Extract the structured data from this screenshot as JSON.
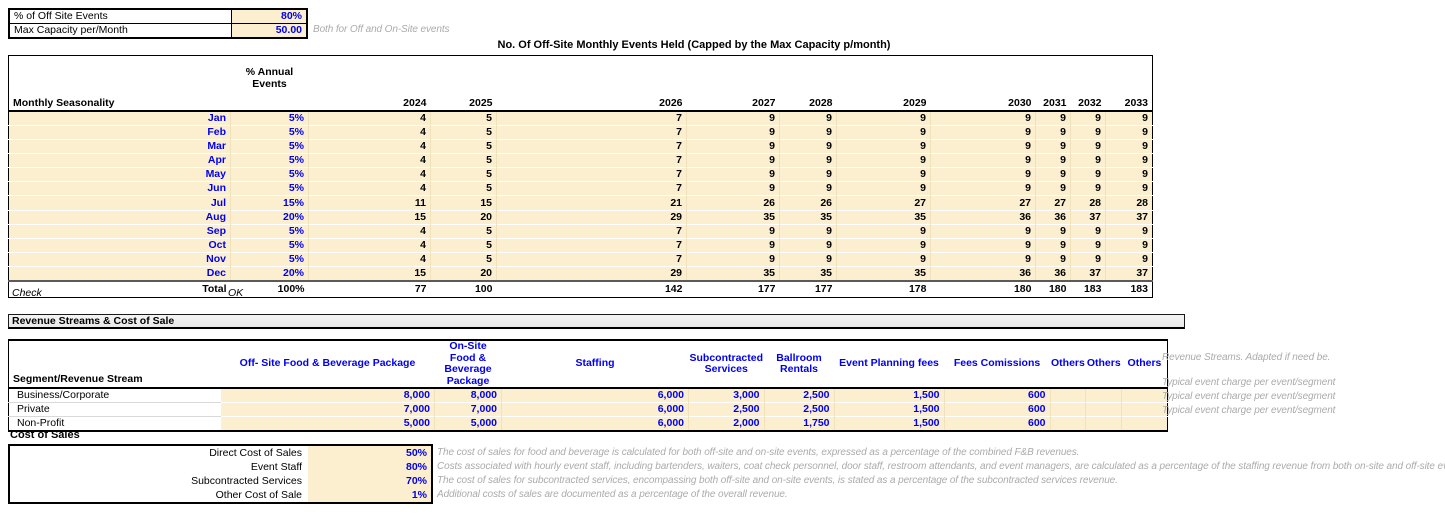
{
  "colors": {
    "accent_blue": "#0000EE",
    "input_fill": "#FBEFD0",
    "note_gray": "#ABABAB",
    "header_bar_fill": "#E9E9E9"
  },
  "params": {
    "off_site_events_label": "% of Off Site Events",
    "off_site_events_value": "80%",
    "max_capacity_label": "Max Capacity per/Month",
    "max_capacity_value": "50.00",
    "note": "Both for Off and On-Site events"
  },
  "seasonality": {
    "title": "No. Of Off-Site Monthly Events Held (Capped by the Max Capacity p/month)",
    "row_header": "Monthly Seasonality",
    "pct_header": "% Annual Events",
    "years": [
      "2024",
      "2025",
      "2026",
      "2027",
      "2028",
      "2029",
      "2030",
      "2031",
      "2032",
      "2033"
    ],
    "rows": [
      {
        "month": "Jan",
        "pct": "5%",
        "values": [
          "4",
          "5",
          "7",
          "9",
          "9",
          "9",
          "9",
          "9",
          "9",
          "9"
        ]
      },
      {
        "month": "Feb",
        "pct": "5%",
        "values": [
          "4",
          "5",
          "7",
          "9",
          "9",
          "9",
          "9",
          "9",
          "9",
          "9"
        ]
      },
      {
        "month": "Mar",
        "pct": "5%",
        "values": [
          "4",
          "5",
          "7",
          "9",
          "9",
          "9",
          "9",
          "9",
          "9",
          "9"
        ]
      },
      {
        "month": "Apr",
        "pct": "5%",
        "values": [
          "4",
          "5",
          "7",
          "9",
          "9",
          "9",
          "9",
          "9",
          "9",
          "9"
        ]
      },
      {
        "month": "May",
        "pct": "5%",
        "values": [
          "4",
          "5",
          "7",
          "9",
          "9",
          "9",
          "9",
          "9",
          "9",
          "9"
        ]
      },
      {
        "month": "Jun",
        "pct": "5%",
        "values": [
          "4",
          "5",
          "7",
          "9",
          "9",
          "9",
          "9",
          "9",
          "9",
          "9"
        ]
      },
      {
        "month": "Jul",
        "pct": "15%",
        "values": [
          "11",
          "15",
          "21",
          "26",
          "26",
          "27",
          "27",
          "27",
          "28",
          "28"
        ]
      },
      {
        "month": "Aug",
        "pct": "20%",
        "values": [
          "15",
          "20",
          "29",
          "35",
          "35",
          "35",
          "36",
          "36",
          "37",
          "37"
        ]
      },
      {
        "month": "Sep",
        "pct": "5%",
        "values": [
          "4",
          "5",
          "7",
          "9",
          "9",
          "9",
          "9",
          "9",
          "9",
          "9"
        ]
      },
      {
        "month": "Oct",
        "pct": "5%",
        "values": [
          "4",
          "5",
          "7",
          "9",
          "9",
          "9",
          "9",
          "9",
          "9",
          "9"
        ]
      },
      {
        "month": "Nov",
        "pct": "5%",
        "values": [
          "4",
          "5",
          "7",
          "9",
          "9",
          "9",
          "9",
          "9",
          "9",
          "9"
        ]
      },
      {
        "month": "Dec",
        "pct": "20%",
        "values": [
          "15",
          "20",
          "29",
          "35",
          "35",
          "35",
          "36",
          "36",
          "37",
          "37"
        ]
      }
    ],
    "total_label": "Total",
    "total_pct": "100%",
    "totals": [
      "77",
      "100",
      "142",
      "177",
      "177",
      "178",
      "180",
      "180",
      "183",
      "183"
    ],
    "check_label": "Check",
    "check_value": "OK"
  },
  "revenue_section": {
    "header": "Revenue Streams & Cost of Sale",
    "table": {
      "row_header": "Segment/Revenue Stream",
      "columns": [
        "Off- Site Food & Beverage Package",
        "On-Site Food & Beverage Package",
        "Staffing",
        "Subcontracted Services",
        "Ballroom Rentals",
        "Event Planning fees",
        "Fees Comissions",
        "Others",
        "Others",
        "Others"
      ],
      "header_note": "Revenue Streams. Adapted if need be.",
      "rows": [
        {
          "segment": "Business/Corporate",
          "values": [
            "8,000",
            "8,000",
            "6,000",
            "3,000",
            "2,500",
            "1,500",
            "600",
            "",
            "",
            ""
          ],
          "note": "Typical event charge per event/segment"
        },
        {
          "segment": "Private",
          "values": [
            "7,000",
            "7,000",
            "6,000",
            "2,500",
            "2,500",
            "1,500",
            "600",
            "",
            "",
            ""
          ],
          "note": "Typical event charge per event/segment"
        },
        {
          "segment": "Non-Profit",
          "values": [
            "5,000",
            "5,000",
            "6,000",
            "2,000",
            "1,750",
            "1,500",
            "600",
            "",
            "",
            ""
          ],
          "note": "Typical event charge per event/segment"
        }
      ]
    }
  },
  "cost_of_sales": {
    "header": "Cost of Sales",
    "rows": [
      {
        "label": "Direct Cost of Sales",
        "value": "50%",
        "note": "The cost of sales for food and beverage is calculated for both off-site and on-site events, expressed as a percentage of the combined F&B revenues."
      },
      {
        "label": "Event Staff",
        "value": "80%",
        "note": "Costs associated with hourly event staff, including bartenders, waiters, coat check personnel, door staff, restroom attendants, and event managers, are calculated as a percentage of the staffing revenue from both on-site and off-site events."
      },
      {
        "label": "Subcontracted Services",
        "value": "70%",
        "note": "The cost of sales for subcontracted services, encompassing both off-site and on-site events, is stated as a percentage of the subcontracted services revenue."
      },
      {
        "label": "Other Cost of Sale",
        "value": "1%",
        "note": "Additional costs of sales are documented as a percentage of the overall revenue."
      }
    ]
  }
}
